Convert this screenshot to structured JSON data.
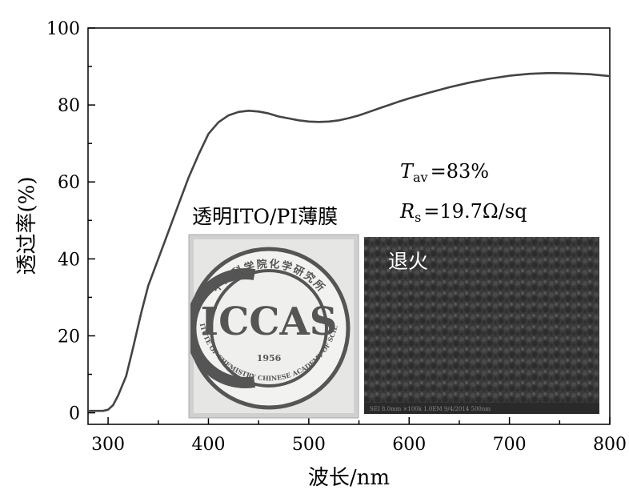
{
  "chart_data": {
    "type": "line",
    "xlabel": "波长/nm",
    "ylabel": "透过率(%)",
    "xlim": [
      280,
      800
    ],
    "ylim": [
      -3,
      100
    ],
    "xticks": [
      300,
      400,
      500,
      600,
      700,
      800
    ],
    "yticks": [
      0,
      20,
      40,
      60,
      80,
      100
    ],
    "grid": false,
    "legend": "none",
    "line_color": "#444444",
    "series": [
      {
        "x": [
          280,
          295,
          300,
          305,
          310,
          318,
          325,
          333,
          340,
          350,
          360,
          370,
          380,
          390,
          400,
          410,
          420,
          430,
          440,
          450,
          460,
          470,
          480,
          490,
          500,
          510,
          520,
          530,
          540,
          550,
          560,
          570,
          580,
          590,
          600,
          620,
          640,
          660,
          680,
          700,
          720,
          740,
          760,
          780,
          800
        ],
        "y": [
          0.5,
          0.5,
          0.8,
          2.0,
          4.5,
          9.5,
          17,
          26,
          33,
          40,
          47,
          54,
          61,
          67,
          72.5,
          75.5,
          77.3,
          78.2,
          78.5,
          78.3,
          77.8,
          77.0,
          76.5,
          76.0,
          75.7,
          75.6,
          75.7,
          76.0,
          76.6,
          77.3,
          78.2,
          79.1,
          80.0,
          80.9,
          81.7,
          83.2,
          84.6,
          85.8,
          86.8,
          87.6,
          88.1,
          88.3,
          88.2,
          88.0,
          87.5
        ]
      }
    ],
    "annotations": {
      "tav_symbol": "T",
      "tav_subscript": "av",
      "tav_value": "=83%",
      "rs_symbol": "R",
      "rs_subscript": "s",
      "rs_value": "=19.7Ω/sq"
    }
  },
  "insets": {
    "photo_title": "透明ITO/PI薄膜",
    "logo": {
      "text": "ICCAS",
      "year": "1956",
      "arc_top": "中国科学院化学研究所",
      "arc_bottom": "INSTITUTE OF CHEMISTRY  CHINESE ACADEMY OF SCIENCES"
    },
    "sem_label": "退火",
    "sem_footer": "SEI 8.0mm ×100k 1.0EM 9/4/2014                    500nm"
  }
}
